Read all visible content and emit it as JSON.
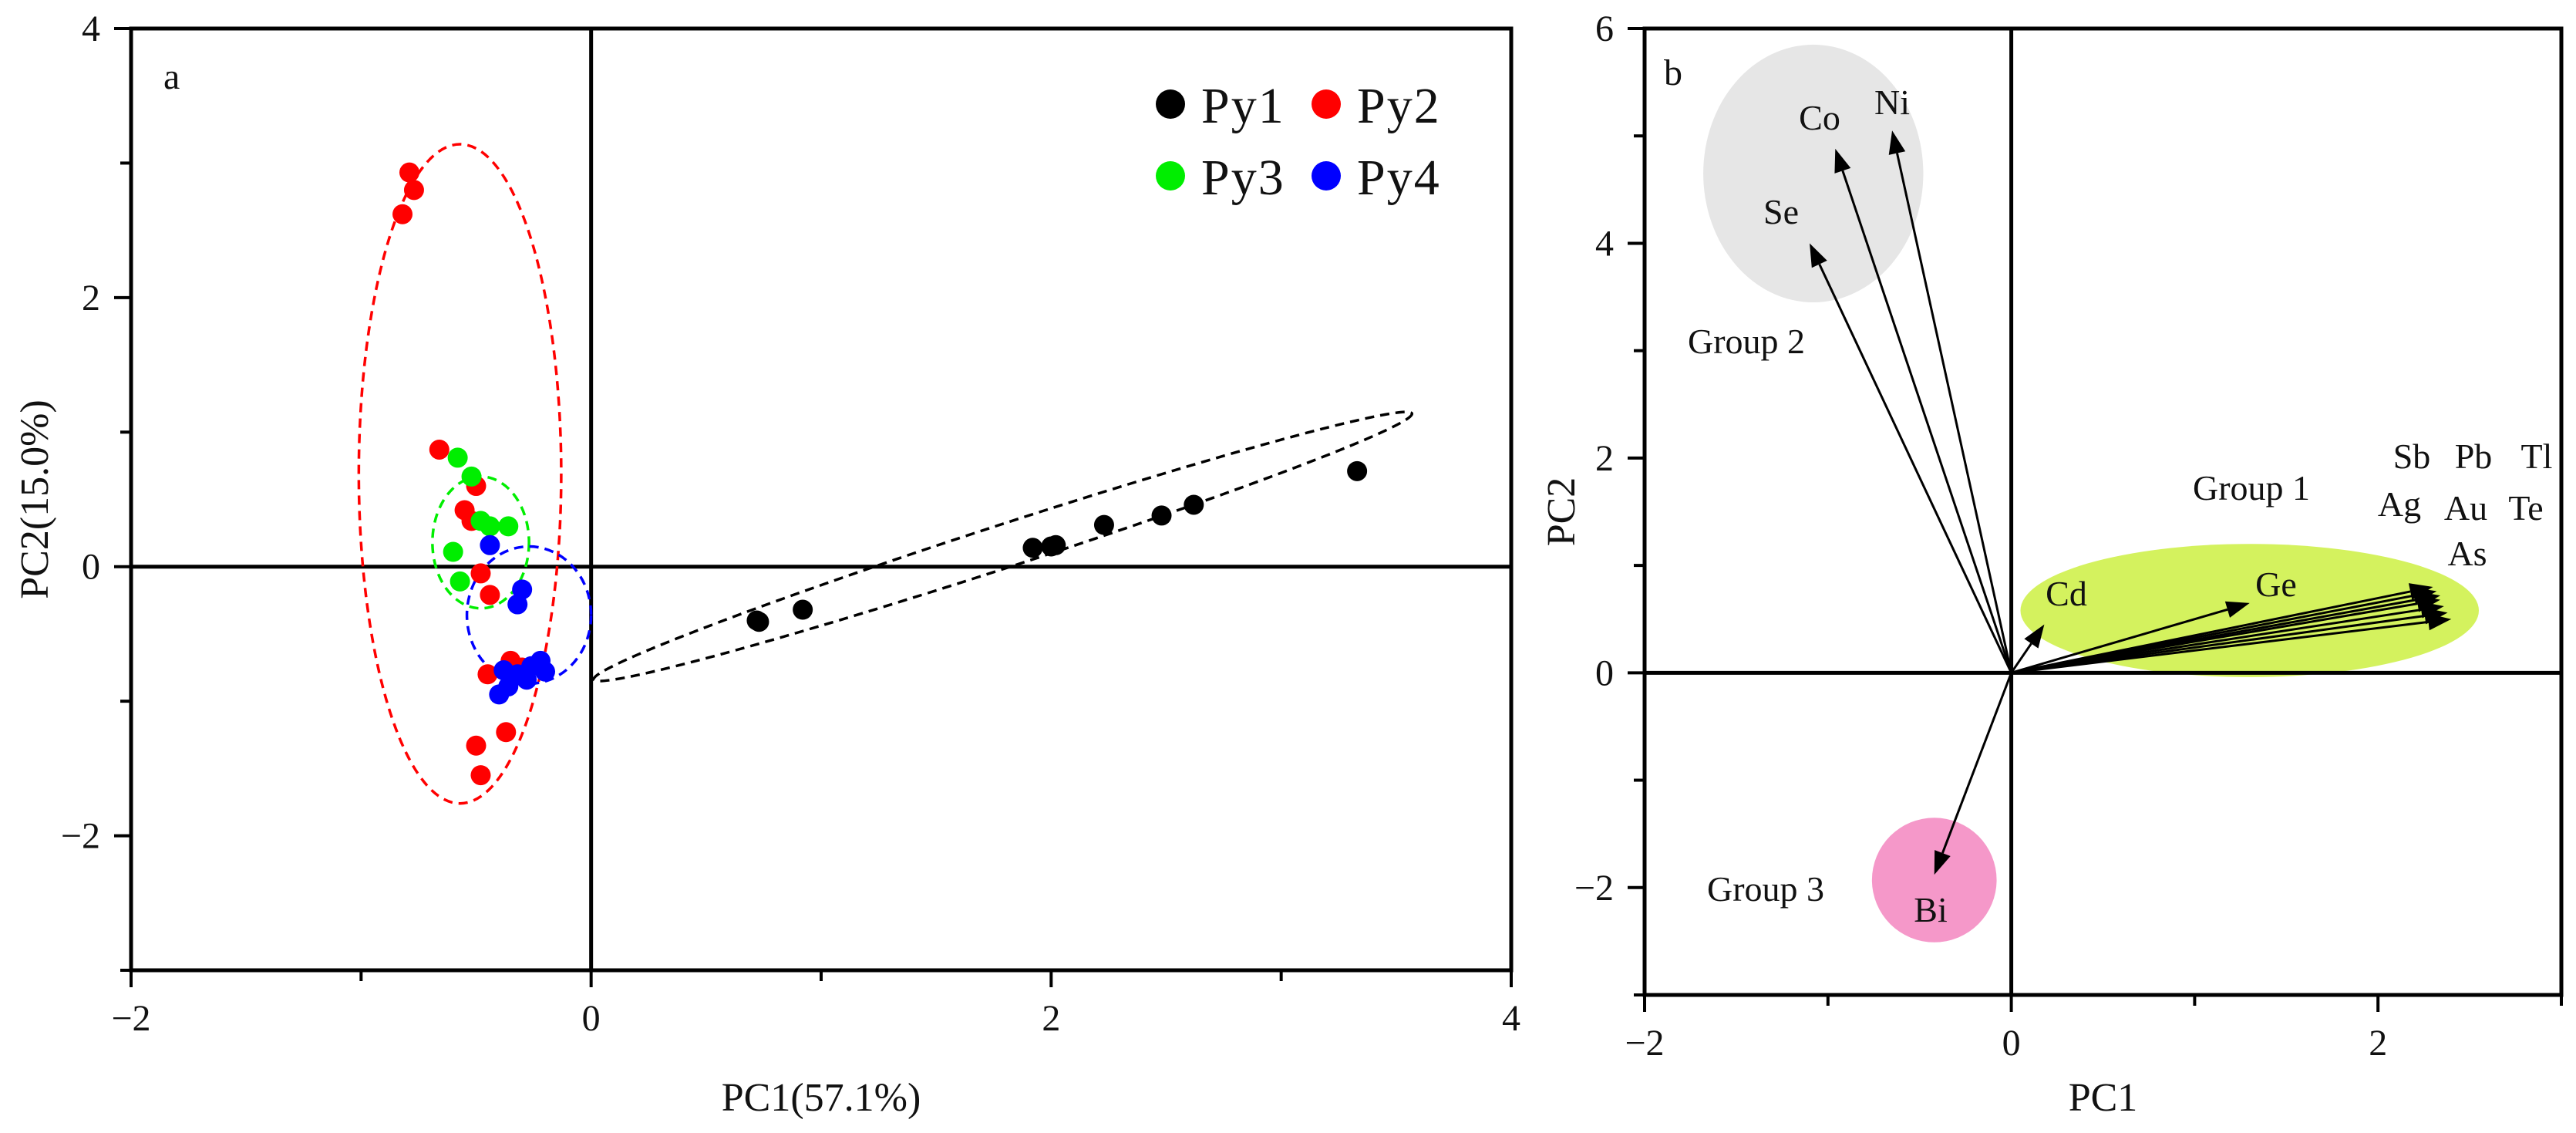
{
  "chart_data": [
    {
      "panel": "a",
      "type": "scatter",
      "title": "",
      "xlabel": "PC1(57.1%)",
      "ylabel": "PC2(15.0%)",
      "xlim": [
        -2,
        4
      ],
      "ylim": [
        -3,
        4
      ],
      "xticks": [
        -2,
        0,
        2,
        4
      ],
      "yticks": [
        -2,
        0,
        2,
        4
      ],
      "xtick_labels": [
        "−2",
        "0",
        "2",
        "4"
      ],
      "ytick_labels": [
        "−2",
        "0",
        "2",
        "4"
      ],
      "legend": "top-right",
      "series": [
        {
          "name": "Py1",
          "color": "#000000",
          "points": [
            [
              0.72,
              -0.4
            ],
            [
              0.73,
              -0.41
            ],
            [
              0.92,
              -0.32
            ],
            [
              1.92,
              0.14
            ],
            [
              2.0,
              0.15
            ],
            [
              2.02,
              0.16
            ],
            [
              2.23,
              0.31
            ],
            [
              2.48,
              0.38
            ],
            [
              2.62,
              0.46
            ],
            [
              3.33,
              0.71
            ]
          ],
          "ellipse": {
            "cx": 1.79,
            "cy": 0.15,
            "rx": 1.87,
            "ry": 0.16,
            "angle_deg": 18
          }
        },
        {
          "name": "Py2",
          "color": "#ff0000",
          "points": [
            [
              -0.79,
              2.93
            ],
            [
              -0.77,
              2.8
            ],
            [
              -0.82,
              2.62
            ],
            [
              -0.66,
              0.87
            ],
            [
              -0.55,
              0.42
            ],
            [
              -0.5,
              0.6
            ],
            [
              -0.52,
              0.34
            ],
            [
              -0.48,
              -0.05
            ],
            [
              -0.44,
              -0.21
            ],
            [
              -0.45,
              -0.8
            ],
            [
              -0.35,
              -0.7
            ],
            [
              -0.37,
              -1.23
            ],
            [
              -0.5,
              -1.33
            ],
            [
              -0.48,
              -1.55
            ],
            [
              -0.3,
              -0.75
            ]
          ],
          "ellipse": {
            "cx": -0.57,
            "cy": 0.69,
            "rx": 0.44,
            "ry": 2.45,
            "angle_deg": 0
          }
        },
        {
          "name": "Py3",
          "color": "#00ee00",
          "points": [
            [
              -0.58,
              0.81
            ],
            [
              -0.52,
              0.67
            ],
            [
              -0.48,
              0.34
            ],
            [
              -0.44,
              0.3
            ],
            [
              -0.36,
              0.3
            ],
            [
              -0.6,
              0.11
            ],
            [
              -0.57,
              -0.11
            ]
          ],
          "ellipse": {
            "cx": -0.48,
            "cy": 0.18,
            "rx": 0.21,
            "ry": 0.49,
            "angle_deg": 0
          }
        },
        {
          "name": "Py4",
          "color": "#0000ff",
          "points": [
            [
              -0.44,
              0.16
            ],
            [
              -0.3,
              -0.17
            ],
            [
              -0.32,
              -0.28
            ],
            [
              -0.38,
              -0.77
            ],
            [
              -0.26,
              -0.74
            ],
            [
              -0.2,
              -0.78
            ],
            [
              -0.28,
              -0.84
            ],
            [
              -0.36,
              -0.89
            ],
            [
              -0.4,
              -0.95
            ],
            [
              -0.32,
              -0.8
            ],
            [
              -0.22,
              -0.7
            ]
          ],
          "ellipse": {
            "cx": -0.27,
            "cy": -0.36,
            "rx": 0.27,
            "ry": 0.51,
            "angle_deg": 0
          }
        }
      ]
    },
    {
      "panel": "b",
      "type": "scatter",
      "subtype": "loading-vectors",
      "title": "",
      "xlabel": "PC1",
      "ylabel": "PC2",
      "xlim": [
        -2,
        3
      ],
      "ylim": [
        -3,
        6
      ],
      "xticks": [
        -2,
        0,
        2
      ],
      "yticks": [
        -2,
        0,
        2,
        4,
        6
      ],
      "xtick_labels": [
        "−2",
        "0",
        "2"
      ],
      "ytick_labels": [
        "−2",
        "0",
        "2",
        "4",
        "6"
      ],
      "vectors": [
        {
          "name": "Se",
          "x": -1.1,
          "y": 4.0
        },
        {
          "name": "Co",
          "x": -0.96,
          "y": 4.88
        },
        {
          "name": "Ni",
          "x": -0.65,
          "y": 5.05
        },
        {
          "name": "Cd",
          "x": 0.18,
          "y": 0.45
        },
        {
          "name": "Ge",
          "x": 1.3,
          "y": 0.65
        },
        {
          "name": "Sb",
          "x": 2.3,
          "y": 0.8
        },
        {
          "name": "Pb",
          "x": 2.32,
          "y": 0.76
        },
        {
          "name": "Tl",
          "x": 2.34,
          "y": 0.72
        },
        {
          "name": "Ag",
          "x": 2.34,
          "y": 0.68
        },
        {
          "name": "Au",
          "x": 2.36,
          "y": 0.62
        },
        {
          "name": "Te",
          "x": 2.38,
          "y": 0.56
        },
        {
          "name": "As",
          "x": 2.4,
          "y": 0.5
        },
        {
          "name": "Bi",
          "x": -0.42,
          "y": -1.88
        }
      ],
      "groups": [
        {
          "name": "Group 1",
          "color": "#d4f25e",
          "members": [
            "Cd",
            "Ge",
            "Sb",
            "Pb",
            "Tl",
            "Ag",
            "Au",
            "Te",
            "As"
          ],
          "region": {
            "cx": 1.3,
            "cy": 0.58,
            "rx": 1.25,
            "ry": 0.62
          }
        },
        {
          "name": "Group 2",
          "color": "#e6e6e6",
          "members": [
            "Se",
            "Co",
            "Ni"
          ],
          "region": {
            "cx": -1.08,
            "cy": 4.65,
            "rx": 0.6,
            "ry": 1.2
          }
        },
        {
          "name": "Group 3",
          "color": "#f598c9",
          "members": [
            "Bi"
          ],
          "region": {
            "cx": -0.42,
            "cy": -1.93,
            "rx": 0.34,
            "ry": 0.58
          }
        }
      ]
    }
  ]
}
